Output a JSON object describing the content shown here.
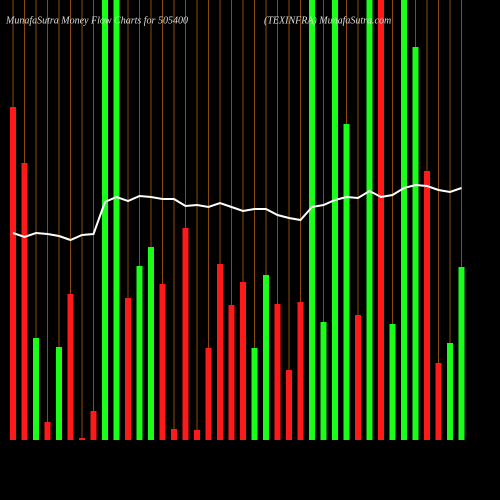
{
  "chart_data": {
    "type": "bar",
    "title": "MunafaSutra  Money Flow Charts for 505400",
    "subtitle": "(TEXINFRA) MunafaSutra.com",
    "categories": [
      null,
      null,
      null,
      null,
      null,
      null,
      null,
      null,
      null,
      null,
      null,
      null,
      null,
      null,
      null,
      null,
      null,
      null,
      null,
      null,
      null,
      null,
      null,
      null,
      null,
      null,
      null,
      null,
      null,
      null,
      null,
      null,
      null,
      null,
      null,
      null,
      null,
      null,
      null,
      null
    ],
    "values": [
      333,
      277,
      102,
      18,
      93,
      146,
      2,
      29,
      440,
      440,
      142,
      174,
      193,
      156,
      11,
      212,
      10,
      92,
      176,
      135,
      158,
      92,
      165,
      136,
      70,
      138,
      440,
      118,
      440,
      316,
      125,
      440,
      440,
      116,
      440,
      393,
      269,
      77,
      97,
      173
    ],
    "colors": [
      "#ff1a1a",
      "#ff1a1a",
      "#1aff1a",
      "#ff1a1a",
      "#1aff1a",
      "#ff1a1a",
      "#ff1a1a",
      "#ff1a1a",
      "#1aff1a",
      "#1aff1a",
      "#ff1a1a",
      "#1aff1a",
      "#1aff1a",
      "#ff1a1a",
      "#ff1a1a",
      "#ff1a1a",
      "#ff1a1a",
      "#ff1a1a",
      "#ff1a1a",
      "#ff1a1a",
      "#ff1a1a",
      "#1aff1a",
      "#1aff1a",
      "#ff1a1a",
      "#ff1a1a",
      "#ff1a1a",
      "#1aff1a",
      "#1aff1a",
      "#1aff1a",
      "#1aff1a",
      "#ff1a1a",
      "#1aff1a",
      "#ff1a1a",
      "#1aff1a",
      "#1aff1a",
      "#1aff1a",
      "#ff1a1a",
      "#ff1a1a",
      "#1aff1a",
      "#1aff1a"
    ],
    "line_values": [
      207,
      203,
      207,
      206,
      204,
      200,
      205,
      206,
      238,
      243,
      239,
      244,
      243,
      241,
      241,
      234,
      235,
      233,
      237,
      233,
      229,
      231,
      231,
      225,
      222,
      220,
      233,
      235,
      240,
      243,
      242,
      249,
      243,
      245,
      252,
      255,
      254,
      250,
      248,
      252
    ],
    "line_color": "#ffffff",
    "grid_color": "#8b4a0a",
    "ylim": [
      0,
      440
    ]
  }
}
